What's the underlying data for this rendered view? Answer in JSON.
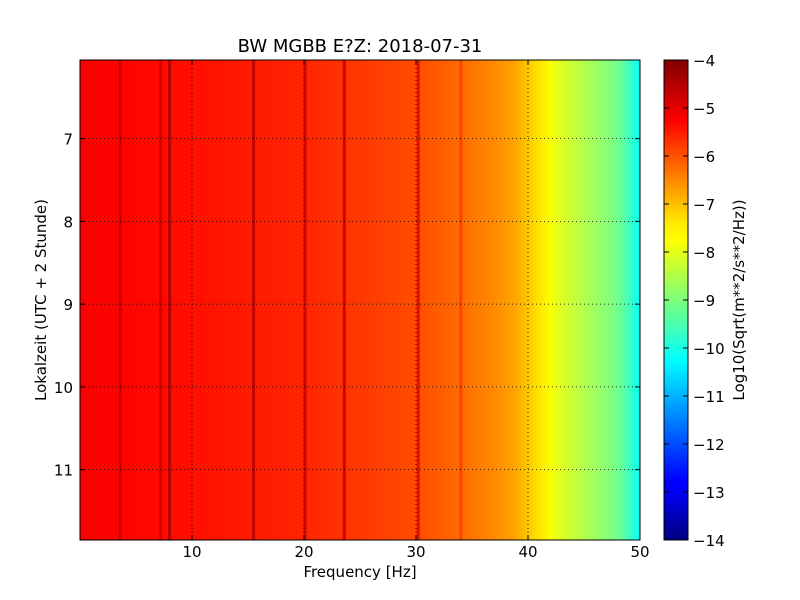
{
  "chart_data": {
    "type": "heatmap",
    "title": "BW MGBB E?Z: 2018-07-31",
    "xlabel": "Frequency [Hz]",
    "ylabel": "Lokalzeit (UTC + 2 Stunde)",
    "xlim": [
      0,
      50
    ],
    "ylim": [
      11.85,
      6.05
    ],
    "x_ticks": [
      10,
      20,
      30,
      40,
      50
    ],
    "x_tick_labels": [
      "10",
      "20",
      "30",
      "40",
      "50"
    ],
    "y_ticks": [
      7,
      8,
      9,
      10,
      11
    ],
    "y_tick_labels": [
      "7",
      "8",
      "9",
      "10",
      "11"
    ],
    "grid": true,
    "grid_style": "dotted",
    "colormap": "jet",
    "colorbar": {
      "label": "Log10(Sqrt(m**2/s**2/Hz))",
      "range": [
        -14,
        -4
      ],
      "ticks": [
        -4,
        -5,
        -6,
        -7,
        -8,
        -9,
        -10,
        -11,
        -12,
        -13,
        -14
      ],
      "tick_labels": [
        "−4",
        "−5",
        "−6",
        "−7",
        "−8",
        "−9",
        "−10",
        "−11",
        "−12",
        "−13",
        "−14"
      ]
    },
    "spectrum_profile": {
      "frequency_hz": [
        0,
        5,
        10,
        15,
        20,
        25,
        30,
        34,
        37,
        39,
        40,
        41,
        42,
        43,
        44,
        45,
        46,
        47,
        48,
        49,
        50
      ],
      "level": [
        -5.2,
        -5.3,
        -5.4,
        -5.5,
        -5.6,
        -5.8,
        -6.0,
        -6.3,
        -6.6,
        -6.9,
        -7.2,
        -7.5,
        -7.8,
        -8.1,
        -8.3,
        -8.5,
        -8.7,
        -8.9,
        -9.1,
        -9.6,
        -10.2
      ]
    },
    "line_features": [
      {
        "frequency_hz": 3.6,
        "level": -4.6
      },
      {
        "frequency_hz": 7.2,
        "level": -4.8
      },
      {
        "frequency_hz": 8.0,
        "level": -4.4
      },
      {
        "frequency_hz": 15.5,
        "level": -4.5
      },
      {
        "frequency_hz": 20.1,
        "level": -4.8
      },
      {
        "frequency_hz": 23.6,
        "level": -4.7
      },
      {
        "frequency_hz": 30.2,
        "level": -5.0
      },
      {
        "frequency_hz": 34.0,
        "level": -5.8
      }
    ]
  }
}
